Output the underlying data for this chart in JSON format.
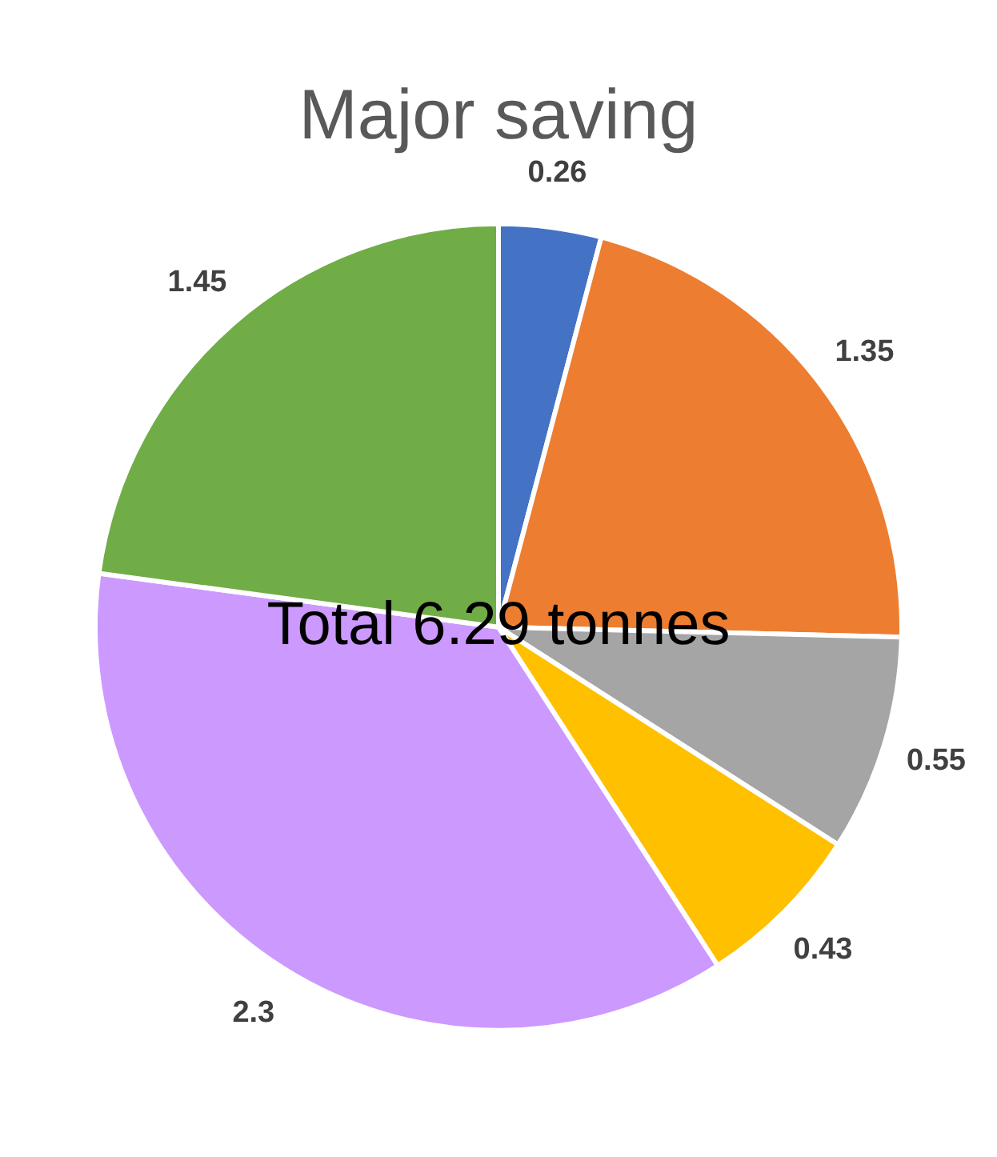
{
  "chart_data": {
    "type": "pie",
    "title": "Major saving",
    "categories": [
      null,
      null,
      null,
      null,
      null,
      null
    ],
    "values": [
      0.26,
      1.35,
      0.55,
      0.43,
      2.3,
      1.45
    ],
    "colors": [
      "#4472c4",
      "#ed7d31",
      "#a5a5a5",
      "#ffc000",
      "#cc99ff",
      "#70ad47"
    ],
    "data_labels": true,
    "legend": false,
    "annotations": [
      "Total 6.29 tonnes"
    ]
  }
}
